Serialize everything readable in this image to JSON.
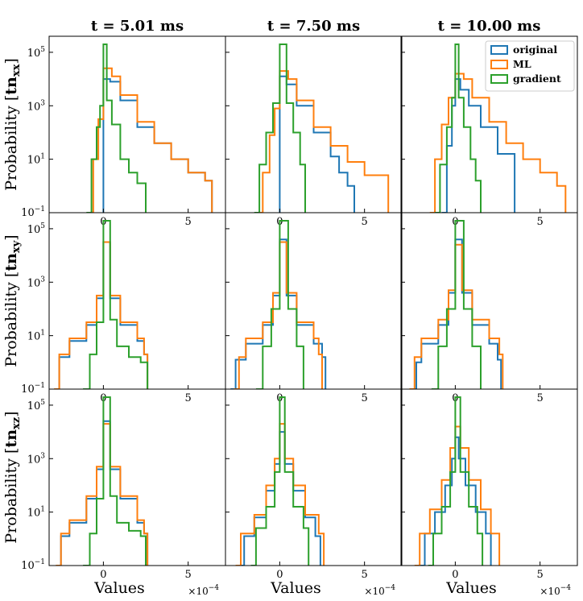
{
  "chart_data": {
    "type": "step-histogram-grid",
    "rows": 3,
    "cols": 3,
    "column_titles": [
      "t = 5.01 ms",
      "t = 7.50 ms",
      "t = 10.00 ms"
    ],
    "row_ylabels": [
      {
        "prefix": "Probability [",
        "main": "tn",
        "sub": "xx",
        "suffix": "]"
      },
      {
        "prefix": "Probability [",
        "main": "tn",
        "sub": "xy",
        "suffix": "]"
      },
      {
        "prefix": "Probability [",
        "main": "tn",
        "sub": "xz",
        "suffix": "]"
      }
    ],
    "xlabel": "Values",
    "x_multiplier": {
      "base": "×10",
      "exp": "−4"
    },
    "xlim": [
      -3.2,
      7.2
    ],
    "x_ticks": [
      {
        "value": 0,
        "label": "0"
      },
      {
        "value": 5,
        "label": "5"
      }
    ],
    "ylim_log10": [
      -1,
      5.6
    ],
    "y_ticks": [
      {
        "exp10": 5,
        "base": "10",
        "exp": "5"
      },
      {
        "exp10": 3,
        "base": "10",
        "exp": "3"
      },
      {
        "exp10": 1,
        "base": "10",
        "exp": "1"
      },
      {
        "exp10": -1,
        "base": "10",
        "exp": "−1"
      }
    ],
    "y_scale": "log",
    "legend": {
      "position": "upper-right",
      "panel": "row1-col3",
      "entries": [
        {
          "label": "original",
          "color": "#1f77b4"
        },
        {
          "label": "ML",
          "color": "#ff7f0e"
        },
        {
          "label": "gradient",
          "color": "#2ca02c"
        }
      ]
    },
    "series_colors": {
      "original": "#1f77b4",
      "ML": "#ff7f0e",
      "gradient": "#2ca02c"
    },
    "panels": [
      {
        "row": 1,
        "col": 1,
        "series": [
          {
            "name": "original",
            "x": [
              0,
              0.4,
              1,
              2,
              3,
              4,
              5,
              6,
              6.4
            ],
            "log10_y": [
              4.0,
              3.9,
              3.2,
              2.2,
              1.6,
              1.0,
              0.5,
              0.2,
              -1.0
            ]
          },
          {
            "name": "ML",
            "x": [
              -0.8,
              -0.6,
              -0.3,
              0,
              0.5,
              1,
              2,
              3,
              4,
              5,
              6,
              6.4
            ],
            "log10_y": [
              -1.0,
              1.0,
              2.5,
              4.4,
              4.1,
              3.4,
              2.4,
              1.6,
              1.0,
              0.5,
              0.2,
              -1.0
            ]
          },
          {
            "name": "gradient",
            "x": [
              -1.0,
              -0.7,
              -0.4,
              -0.2,
              0,
              0.2,
              0.5,
              1,
              1.5,
              2,
              2.5
            ],
            "log10_y": [
              -1.0,
              1.0,
              2.2,
              3.0,
              5.3,
              3.2,
              2.3,
              1.0,
              0.5,
              0.1,
              -1.0
            ]
          }
        ]
      },
      {
        "row": 1,
        "col": 2,
        "series": [
          {
            "name": "original",
            "x": [
              0,
              0.4,
              1,
              2,
              3,
              3.5,
              4,
              4.4
            ],
            "log10_y": [
              4.1,
              3.8,
              3.0,
              2.0,
              1.1,
              0.5,
              0.0,
              -1.0
            ]
          },
          {
            "name": "ML",
            "x": [
              -1.2,
              -1.0,
              -0.6,
              -0.3,
              0,
              0.5,
              1,
              2,
              3,
              4,
              5,
              6.4
            ],
            "log10_y": [
              -1.0,
              0.5,
              1.9,
              2.9,
              4.3,
              4.0,
              3.2,
              2.2,
              1.5,
              0.9,
              0.4,
              -1.0
            ]
          },
          {
            "name": "gradient",
            "x": [
              -1.5,
              -1.2,
              -0.8,
              -0.4,
              0,
              0.4,
              0.8,
              1.2,
              1.5
            ],
            "log10_y": [
              -1.0,
              0.8,
              2.0,
              3.1,
              5.3,
              3.1,
              2.0,
              0.8,
              -1.0
            ]
          }
        ]
      },
      {
        "row": 1,
        "col": 3,
        "series": [
          {
            "name": "original",
            "x": [
              -0.8,
              -0.5,
              -0.2,
              0,
              0.3,
              0.8,
              1.5,
              2.5,
              3.5
            ],
            "log10_y": [
              -1.0,
              1.5,
              3.0,
              4.0,
              3.6,
              3.0,
              2.2,
              1.2,
              -1.0
            ]
          },
          {
            "name": "ML",
            "x": [
              -1.5,
              -1.2,
              -0.8,
              -0.4,
              0,
              0.5,
              1,
              2,
              3,
              4,
              5,
              6,
              6.5
            ],
            "log10_y": [
              -1.0,
              1.0,
              2.3,
              3.3,
              4.2,
              4.0,
              3.3,
              2.4,
              1.6,
              1.0,
              0.5,
              0.0,
              -1.0
            ]
          },
          {
            "name": "gradient",
            "x": [
              -1.2,
              -0.9,
              -0.5,
              -0.2,
              0,
              0.2,
              0.5,
              0.9,
              1.2,
              1.5
            ],
            "log10_y": [
              -1.0,
              0.8,
              2.2,
              3.3,
              5.3,
              3.3,
              2.2,
              1.0,
              0.2,
              -1.0
            ]
          }
        ]
      },
      {
        "row": 2,
        "col": 1,
        "series": [
          {
            "name": "original",
            "x": [
              -2.9,
              -2.6,
              -2,
              -1,
              -0.4,
              0,
              0.4,
              1,
              2,
              2.4,
              2.6
            ],
            "log10_y": [
              -1.0,
              0.2,
              0.8,
              1.4,
              2.4,
              4.5,
              2.4,
              1.4,
              0.8,
              0.3,
              -1.0
            ]
          },
          {
            "name": "ML",
            "x": [
              -2.9,
              -2.6,
              -2,
              -1,
              -0.4,
              0,
              0.4,
              1,
              2,
              2.4,
              2.6
            ],
            "log10_y": [
              -1.0,
              0.3,
              0.9,
              1.5,
              2.5,
              4.5,
              2.5,
              1.5,
              0.9,
              0.3,
              -1.0
            ]
          },
          {
            "name": "gradient",
            "x": [
              -1.2,
              -0.8,
              -0.4,
              0,
              0.4,
              0.8,
              1.5,
              2.2,
              2.6
            ],
            "log10_y": [
              -1.0,
              0.3,
              1.5,
              5.3,
              1.6,
              0.6,
              0.2,
              0.0,
              -1.0
            ]
          }
        ]
      },
      {
        "row": 2,
        "col": 2,
        "series": [
          {
            "name": "original",
            "x": [
              -2.9,
              -2.6,
              -2,
              -1,
              -0.4,
              0,
              0.4,
              1,
              2,
              2.5,
              2.7
            ],
            "log10_y": [
              -1.0,
              0.1,
              0.7,
              1.4,
              2.5,
              4.6,
              2.5,
              1.4,
              0.7,
              0.2,
              -1.0
            ]
          },
          {
            "name": "ML",
            "x": [
              -2.7,
              -2.4,
              -2,
              -1,
              -0.4,
              0,
              0.4,
              1,
              2,
              2.3,
              2.5
            ],
            "log10_y": [
              -1.0,
              0.2,
              0.9,
              1.5,
              2.6,
              4.5,
              2.6,
              1.5,
              0.9,
              0.3,
              -1.0
            ]
          },
          {
            "name": "gradient",
            "x": [
              -1.4,
              -1.0,
              -0.5,
              0,
              0.5,
              1.0,
              1.4
            ],
            "log10_y": [
              -1.0,
              0.6,
              2.0,
              5.3,
              2.0,
              0.6,
              -1.0
            ]
          }
        ]
      },
      {
        "row": 2,
        "col": 3,
        "series": [
          {
            "name": "original",
            "x": [
              -2.6,
              -2.3,
              -2,
              -1,
              -0.4,
              0,
              0.4,
              1,
              2,
              2.5,
              2.7
            ],
            "log10_y": [
              -1.0,
              0.0,
              0.7,
              1.4,
              2.6,
              4.6,
              2.6,
              1.4,
              0.7,
              0.1,
              -1.0
            ]
          },
          {
            "name": "ML",
            "x": [
              -2.7,
              -2.4,
              -2,
              -1,
              -0.4,
              0,
              0.4,
              1,
              2,
              2.6,
              2.8
            ],
            "log10_y": [
              -1.0,
              0.2,
              0.9,
              1.6,
              2.7,
              4.4,
              2.7,
              1.6,
              0.9,
              0.3,
              -1.0
            ]
          },
          {
            "name": "gradient",
            "x": [
              -1.4,
              -1.0,
              -0.5,
              0,
              0.5,
              1.0,
              1.5
            ],
            "log10_y": [
              -1.0,
              0.6,
              2.0,
              5.3,
              2.0,
              0.6,
              -1.0
            ]
          }
        ]
      },
      {
        "row": 3,
        "col": 1,
        "series": [
          {
            "name": "original",
            "x": [
              -2.8,
              -2.5,
              -2,
              -1,
              -0.4,
              0,
              0.4,
              1,
              2,
              2.4,
              2.6
            ],
            "log10_y": [
              -1.0,
              0.1,
              0.6,
              1.5,
              2.6,
              4.4,
              2.6,
              1.5,
              0.6,
              0.2,
              -1.0
            ]
          },
          {
            "name": "ML",
            "x": [
              -2.8,
              -2.5,
              -2,
              -1,
              -0.4,
              0,
              0.4,
              1,
              2,
              2.4,
              2.6
            ],
            "log10_y": [
              -1.0,
              0.2,
              0.7,
              1.6,
              2.7,
              4.3,
              2.7,
              1.6,
              0.7,
              0.2,
              -1.0
            ]
          },
          {
            "name": "gradient",
            "x": [
              -1.2,
              -0.8,
              -0.4,
              0,
              0.4,
              0.8,
              1.5,
              2.2,
              2.5
            ],
            "log10_y": [
              -1.0,
              0.2,
              1.5,
              5.3,
              1.6,
              0.6,
              0.3,
              0.1,
              -1.0
            ]
          }
        ]
      },
      {
        "row": 3,
        "col": 2,
        "series": [
          {
            "name": "original",
            "x": [
              -2.4,
              -2.1,
              -1.5,
              -0.8,
              -0.3,
              0,
              0.3,
              0.8,
              1.5,
              2.1,
              2.4
            ],
            "log10_y": [
              -1.0,
              0.1,
              0.8,
              1.8,
              2.8,
              4.0,
              2.8,
              1.8,
              0.8,
              0.1,
              -1.0
            ]
          },
          {
            "name": "ML",
            "x": [
              -2.6,
              -2.3,
              -1.5,
              -0.8,
              -0.3,
              0,
              0.3,
              0.8,
              1.5,
              2.3,
              2.6
            ],
            "log10_y": [
              -1.0,
              0.2,
              0.9,
              2.0,
              3.0,
              4.3,
              3.0,
              2.0,
              0.9,
              0.2,
              -1.0
            ]
          },
          {
            "name": "gradient",
            "x": [
              -1.7,
              -1.4,
              -0.8,
              -0.3,
              0,
              0.3,
              0.8,
              1.4,
              1.7
            ],
            "log10_y": [
              -1.0,
              0.4,
              1.2,
              2.5,
              5.3,
              2.5,
              1.2,
              0.4,
              -1.0
            ]
          }
        ]
      },
      {
        "row": 3,
        "col": 3,
        "series": [
          {
            "name": "original",
            "x": [
              -2.1,
              -1.8,
              -1.2,
              -0.6,
              -0.2,
              0,
              0.2,
              0.6,
              1.2,
              1.8,
              2.1
            ],
            "log10_y": [
              -1.0,
              0.2,
              1.0,
              2.0,
              3.0,
              3.8,
              3.0,
              2.0,
              1.0,
              0.2,
              -1.0
            ]
          },
          {
            "name": "ML",
            "x": [
              -2.4,
              -2.1,
              -1.5,
              -0.8,
              -0.3,
              0,
              0.3,
              0.8,
              1.5,
              2.1,
              2.6
            ],
            "log10_y": [
              -1.0,
              0.2,
              1.1,
              2.2,
              3.4,
              4.2,
              3.4,
              2.2,
              1.1,
              0.2,
              -1.0
            ]
          },
          {
            "name": "gradient",
            "x": [
              -1.6,
              -1.3,
              -0.8,
              -0.3,
              0,
              0.3,
              0.8,
              1.3,
              1.6
            ],
            "log10_y": [
              -1.0,
              0.2,
              1.2,
              2.5,
              5.3,
              2.5,
              1.2,
              0.2,
              -1.0
            ]
          }
        ]
      }
    ]
  }
}
